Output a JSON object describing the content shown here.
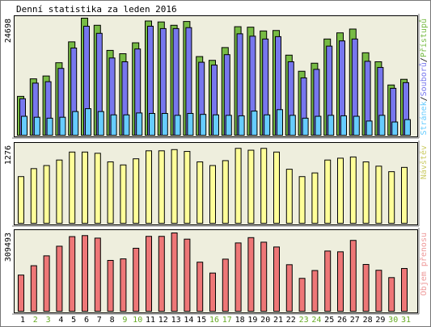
{
  "title": "Denní statistika za leden 2016",
  "colors": {
    "background": "#ffffff",
    "panel_bg": "#eeeedd",
    "frame": "#000000",
    "hits": "#77bb44",
    "files": "#7777ee",
    "pages": "#66ccff",
    "visits": "#ffff99",
    "kbytes": "#ee7777",
    "weekend_label": "#66aa22",
    "weekday_label": "#000000"
  },
  "chart_data": [
    {
      "type": "bar",
      "panel": "hits_files_pages",
      "title": "Denní statistika za leden 2016",
      "categories": [
        "1",
        "2",
        "3",
        "4",
        "5",
        "6",
        "7",
        "8",
        "9",
        "10",
        "11",
        "12",
        "13",
        "14",
        "15",
        "16",
        "17",
        "18",
        "19",
        "20",
        "21",
        "22",
        "23",
        "24",
        "25",
        "26",
        "27",
        "28",
        "29",
        "30",
        "31"
      ],
      "weekend_days": [
        "2",
        "3",
        "9",
        "10",
        "16",
        "17",
        "23",
        "24",
        "30",
        "31"
      ],
      "ymax_label": "24698",
      "ylim": [
        0,
        24698
      ],
      "legend": {
        "placement": "right",
        "orientation": "vertical",
        "items": [
          "Stránek",
          "Souborů",
          "Přístupů"
        ]
      },
      "series": [
        {
          "name": "Přístupů",
          "values": [
            8200,
            11900,
            12500,
            15300,
            19700,
            24698,
            23200,
            17900,
            17200,
            19500,
            24100,
            23900,
            23200,
            24000,
            16600,
            15800,
            18500,
            22900,
            22800,
            22000,
            22100,
            16900,
            13500,
            15200,
            20300,
            21600,
            22400,
            17400,
            15500,
            10600,
            11800
          ]
        },
        {
          "name": "Souborů",
          "values": [
            7700,
            11000,
            11300,
            14100,
            18400,
            23000,
            21500,
            16300,
            15500,
            18200,
            23000,
            22500,
            22500,
            22700,
            15400,
            14800,
            17000,
            21400,
            20900,
            20300,
            20800,
            15500,
            12100,
            13900,
            18800,
            19900,
            20300,
            15600,
            14300,
            9900,
            11100
          ]
        },
        {
          "name": "Stránek",
          "values": [
            4000,
            3800,
            3600,
            3800,
            5000,
            5600,
            5000,
            4300,
            4300,
            4700,
            4600,
            4600,
            4200,
            4600,
            4400,
            4300,
            4200,
            4100,
            5100,
            4300,
            5400,
            4200,
            3600,
            4000,
            4200,
            4100,
            4000,
            3000,
            4200,
            2800,
            3300
          ]
        }
      ]
    },
    {
      "type": "bar",
      "panel": "visits",
      "categories": [
        "1",
        "2",
        "3",
        "4",
        "5",
        "6",
        "7",
        "8",
        "9",
        "10",
        "11",
        "12",
        "13",
        "14",
        "15",
        "16",
        "17",
        "18",
        "19",
        "20",
        "21",
        "22",
        "23",
        "24",
        "25",
        "26",
        "27",
        "28",
        "29",
        "30",
        "31"
      ],
      "ymax_label": "1276",
      "ylim": [
        0,
        1276
      ],
      "legend": {
        "placement": "right",
        "orientation": "vertical",
        "items": [
          "Návštěv"
        ]
      },
      "series": [
        {
          "name": "Návštěv",
          "values": [
            760,
            890,
            940,
            1030,
            1160,
            1160,
            1140,
            1000,
            950,
            1050,
            1180,
            1180,
            1200,
            1170,
            1000,
            940,
            1020,
            1220,
            1190,
            1220,
            1160,
            880,
            760,
            820,
            1030,
            1060,
            1080,
            1000,
            930,
            840,
            910
          ]
        }
      ]
    },
    {
      "type": "bar",
      "panel": "kbytes",
      "categories": [
        "1",
        "2",
        "3",
        "4",
        "5",
        "6",
        "7",
        "8",
        "9",
        "10",
        "11",
        "12",
        "13",
        "14",
        "15",
        "16",
        "17",
        "18",
        "19",
        "20",
        "21",
        "22",
        "23",
        "24",
        "25",
        "26",
        "27",
        "28",
        "29",
        "30",
        "31"
      ],
      "ymax_label": "309493",
      "ylim": [
        0,
        309493
      ],
      "legend": {
        "placement": "right",
        "orientation": "vertical",
        "items": [
          "Objem přenosu"
        ]
      },
      "series": [
        {
          "name": "Objem přenosu",
          "values": [
            143000,
            180000,
            219000,
            257000,
            295000,
            299000,
            289000,
            201000,
            207000,
            249000,
            296000,
            296000,
            309493,
            285000,
            194000,
            151000,
            206000,
            270000,
            291000,
            273000,
            254000,
            184000,
            130000,
            161000,
            238000,
            235000,
            280000,
            185000,
            162000,
            133000,
            169000
          ]
        }
      ]
    }
  ]
}
